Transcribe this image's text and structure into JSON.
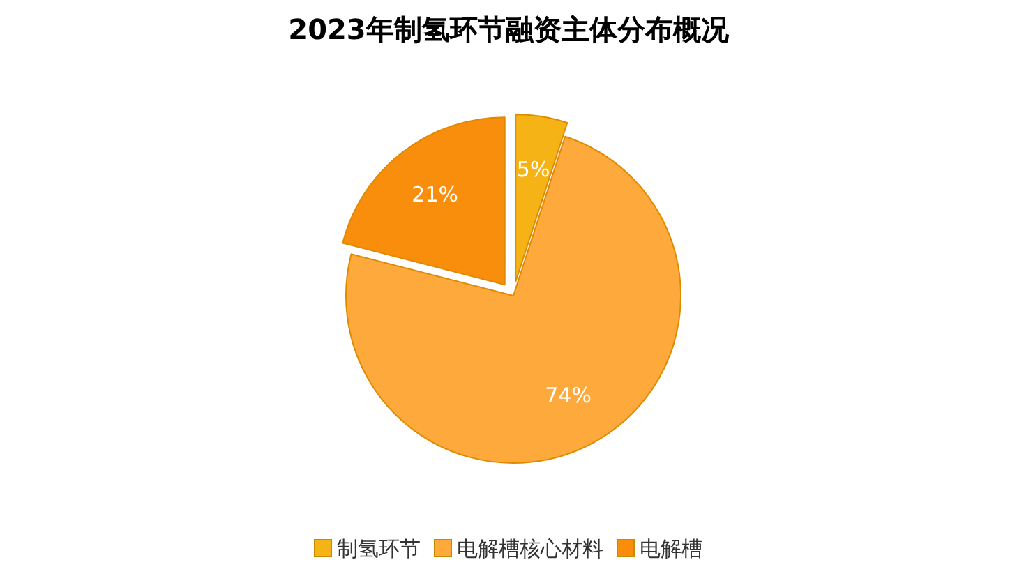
{
  "chart_data": {
    "type": "pie",
    "title": "2023年制氢环节融资主体分布概况",
    "categories": [
      "制氢环节",
      "电解槽核心材料",
      "电解槽"
    ],
    "values": [
      5,
      74,
      21
    ],
    "value_labels": [
      "5%",
      "74%",
      "21%"
    ],
    "colors": [
      "#f5b316",
      "#fda93b",
      "#f98d0c"
    ],
    "legend": "bottom"
  }
}
